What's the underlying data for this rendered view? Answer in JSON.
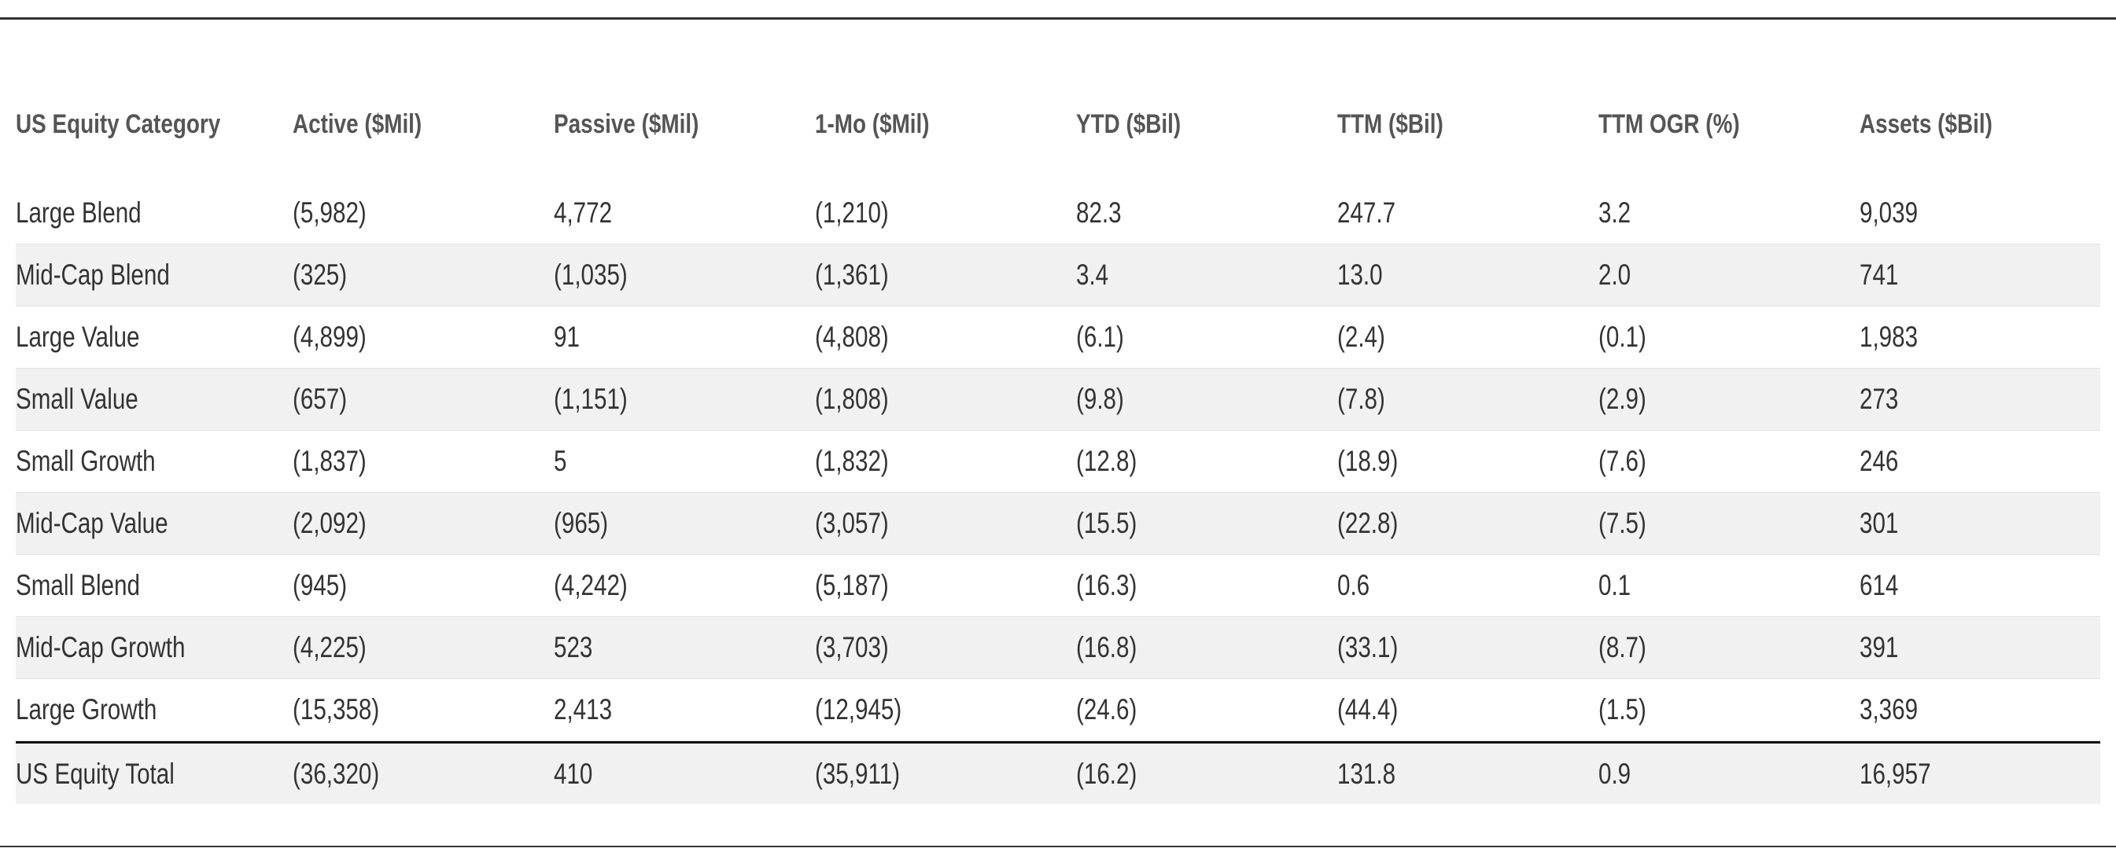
{
  "table": {
    "headers": [
      "US Equity Category",
      "Active ($Mil)",
      "Passive ($Mil)",
      "1-Mo ($Mil)",
      "YTD ($Bil)",
      "TTM ($Bil)",
      "TTM OGR (%)",
      "Assets ($Bil)"
    ],
    "rows": [
      [
        "Large Blend",
        "(5,982)",
        "4,772",
        "(1,210)",
        "82.3",
        "247.7",
        "3.2",
        "9,039"
      ],
      [
        "Mid-Cap Blend",
        "(325)",
        "(1,035)",
        "(1,361)",
        "3.4",
        "13.0",
        "2.0",
        "741"
      ],
      [
        "Large Value",
        "(4,899)",
        "91",
        "(4,808)",
        "(6.1)",
        "(2.4)",
        "(0.1)",
        "1,983"
      ],
      [
        "Small Value",
        "(657)",
        "(1,151)",
        "(1,808)",
        "(9.8)",
        "(7.8)",
        "(2.9)",
        "273"
      ],
      [
        "Small Growth",
        "(1,837)",
        "5",
        "(1,832)",
        "(12.8)",
        "(18.9)",
        "(7.6)",
        "246"
      ],
      [
        "Mid-Cap Value",
        "(2,092)",
        "(965)",
        "(3,057)",
        "(15.5)",
        "(22.8)",
        "(7.5)",
        "301"
      ],
      [
        "Small Blend",
        "(945)",
        "(4,242)",
        "(5,187)",
        "(16.3)",
        "0.6",
        "0.1",
        "614"
      ],
      [
        "Mid-Cap Growth",
        "(4,225)",
        "523",
        "(3,703)",
        "(16.8)",
        "(33.1)",
        "(8.7)",
        "391"
      ],
      [
        "Large Growth",
        "(15,358)",
        "2,413",
        "(12,945)",
        "(24.6)",
        "(44.4)",
        "(1.5)",
        "3,369"
      ]
    ],
    "total": [
      "US Equity Total",
      "(36,320)",
      "410",
      "(35,911)",
      "(16.2)",
      "131.8",
      "0.9",
      "16,957"
    ]
  },
  "chart_data": {
    "type": "table",
    "columns": [
      "US Equity Category",
      "Active ($Mil)",
      "Passive ($Mil)",
      "1-Mo ($Mil)",
      "YTD ($Bil)",
      "TTM ($Bil)",
      "TTM OGR (%)",
      "Assets ($Bil)"
    ],
    "rows": [
      [
        "Large Blend",
        -5982,
        4772,
        -1210,
        82.3,
        247.7,
        3.2,
        9039
      ],
      [
        "Mid-Cap Blend",
        -325,
        -1035,
        -1361,
        3.4,
        13.0,
        2.0,
        741
      ],
      [
        "Large Value",
        -4899,
        91,
        -4808,
        -6.1,
        -2.4,
        -0.1,
        1983
      ],
      [
        "Small Value",
        -657,
        -1151,
        -1808,
        -9.8,
        -7.8,
        -2.9,
        273
      ],
      [
        "Small Growth",
        -1837,
        5,
        -1832,
        -12.8,
        -18.9,
        -7.6,
        246
      ],
      [
        "Mid-Cap Value",
        -2092,
        -965,
        -3057,
        -15.5,
        -22.8,
        -7.5,
        301
      ],
      [
        "Small Blend",
        -945,
        -4242,
        -5187,
        -16.3,
        0.6,
        0.1,
        614
      ],
      [
        "Mid-Cap Growth",
        -4225,
        523,
        -3703,
        -16.8,
        -33.1,
        -8.7,
        391
      ],
      [
        "Large Growth",
        -15358,
        2413,
        -12945,
        -24.6,
        -44.4,
        -1.5,
        3369
      ],
      [
        "US Equity Total",
        -36320,
        410,
        -35911,
        -16.2,
        131.8,
        0.9,
        16957
      ]
    ]
  }
}
